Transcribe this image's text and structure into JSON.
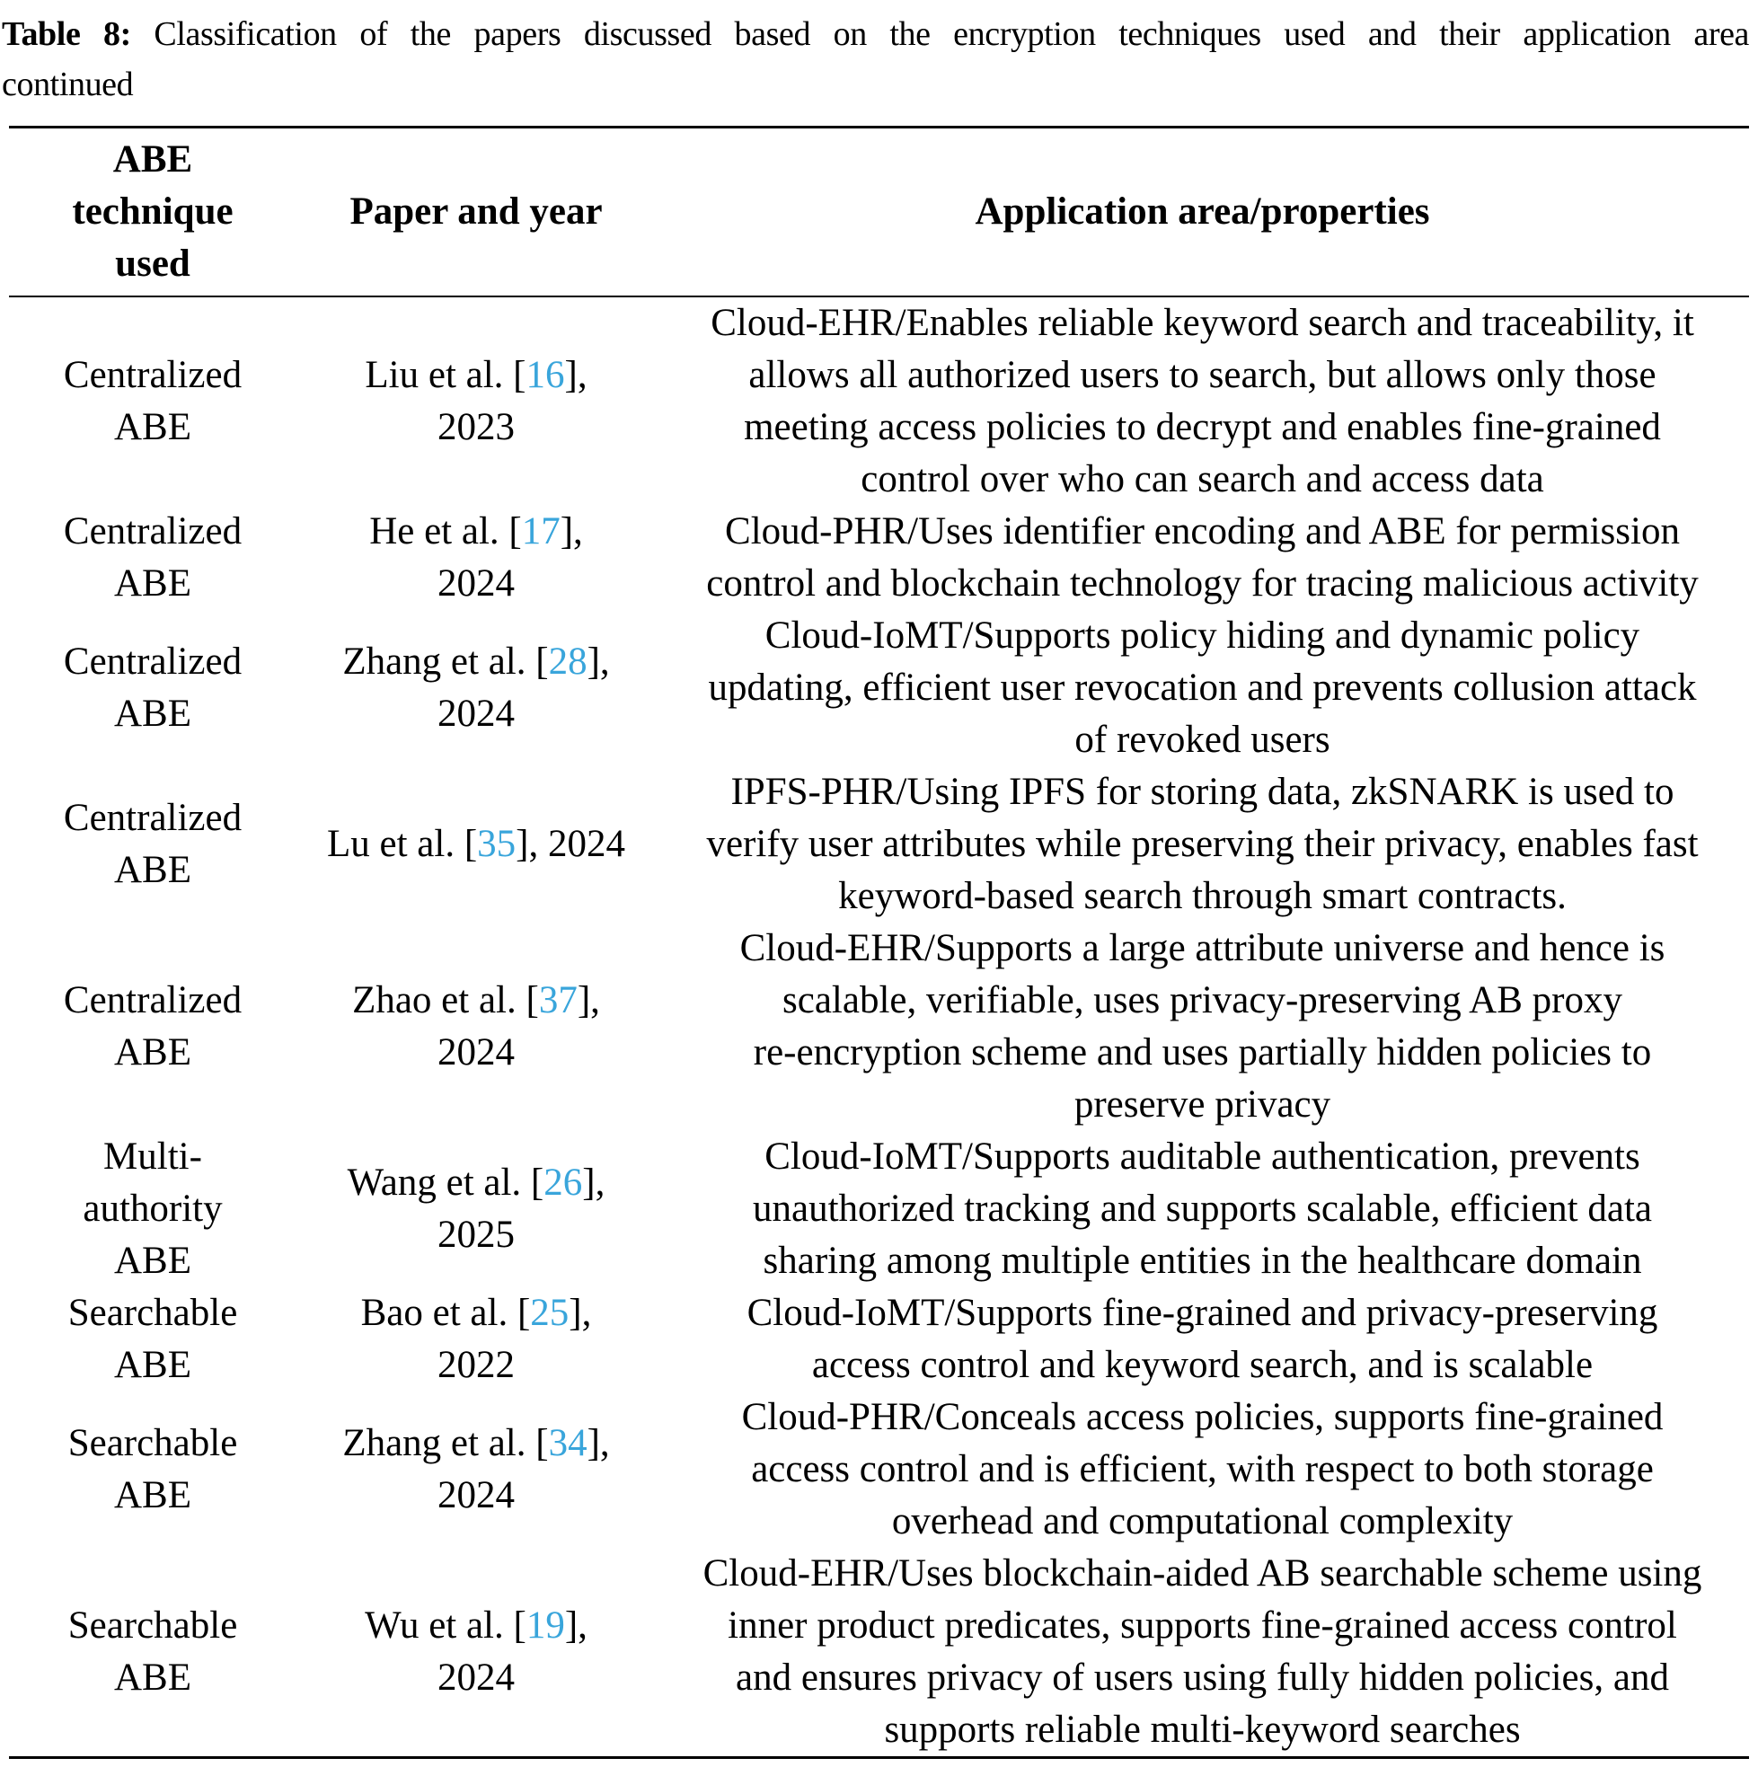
{
  "caption": {
    "label": "Table 8:",
    "line1": "Classification of the papers discussed based on the encryption techniques used and their application area",
    "line2": "continued"
  },
  "colors": {
    "text": "#000000",
    "background": "#FFFFFF",
    "citation_link": "#39A5DB",
    "rule": "#000000"
  },
  "table": {
    "headers": {
      "technique_lines": [
        "ABE",
        "technique",
        "used"
      ],
      "technique": "ABE technique used",
      "paper": "Paper and year",
      "application": "Application area/properties"
    },
    "rows": [
      {
        "technique_lines": [
          "Centralized",
          "ABE"
        ],
        "citation": {
          "prefix": "Liu et al. [",
          "ref": "16",
          "suffix": "],",
          "year": "2023",
          "year_on_same_line": false
        },
        "description_lines": [
          "Cloud-EHR/Enables reliable keyword search and traceability, it",
          "allows all authorized users to search, but allows only those",
          "meeting access policies to decrypt and enables fine-grained",
          "control over who can search and access data"
        ]
      },
      {
        "technique_lines": [
          "Centralized",
          "ABE"
        ],
        "citation": {
          "prefix": "He et al. [",
          "ref": "17",
          "suffix": "],",
          "year": "2024",
          "year_on_same_line": false
        },
        "description_lines": [
          "Cloud-PHR/Uses identifier encoding and ABE for permission",
          "control and blockchain technology for tracing malicious activity"
        ]
      },
      {
        "technique_lines": [
          "Centralized",
          "ABE"
        ],
        "citation": {
          "prefix": "Zhang et al. [",
          "ref": "28",
          "suffix": "],",
          "year": "2024",
          "year_on_same_line": false
        },
        "description_lines": [
          "Cloud-IoMT/Supports policy hiding and dynamic policy",
          "updating, efficient user revocation and prevents collusion attack",
          "of revoked users"
        ]
      },
      {
        "technique_lines": [
          "Centralized",
          "ABE"
        ],
        "citation": {
          "prefix": "Lu et al. [",
          "ref": "35",
          "suffix": "],",
          "year": "2024",
          "year_on_same_line": true
        },
        "description_lines": [
          "IPFS-PHR/Using IPFS for storing data, zkSNARK is used to",
          "verify user attributes while preserving their privacy, enables fast",
          "keyword-based search through smart contracts."
        ]
      },
      {
        "technique_lines": [
          "Centralized",
          "ABE"
        ],
        "citation": {
          "prefix": "Zhao et al. [",
          "ref": "37",
          "suffix": "],",
          "year": "2024",
          "year_on_same_line": false
        },
        "description_lines": [
          "Cloud-EHR/Supports a large attribute universe and hence is",
          "scalable, verifiable, uses privacy-preserving AB proxy",
          "re-encryption scheme and uses partially hidden policies to",
          "preserve privacy"
        ]
      },
      {
        "technique_lines": [
          "Multi-",
          "authority",
          "ABE"
        ],
        "citation": {
          "prefix": "Wang et al. [",
          "ref": "26",
          "suffix": "],",
          "year": "2025",
          "year_on_same_line": false
        },
        "description_lines": [
          "Cloud-IoMT/Supports auditable authentication, prevents",
          "unauthorized tracking and supports scalable, efficient data",
          "sharing among multiple entities in the healthcare domain"
        ]
      },
      {
        "technique_lines": [
          "Searchable",
          "ABE"
        ],
        "citation": {
          "prefix": "Bao et al. [",
          "ref": "25",
          "suffix": "],",
          "year": "2022",
          "year_on_same_line": false
        },
        "description_lines": [
          "Cloud-IoMT/Supports fine-grained and privacy-preserving",
          "access control and keyword search, and is scalable"
        ]
      },
      {
        "technique_lines": [
          "Searchable",
          "ABE"
        ],
        "citation": {
          "prefix": "Zhang et al. [",
          "ref": "34",
          "suffix": "],",
          "year": "2024",
          "year_on_same_line": false
        },
        "description_lines": [
          "Cloud-PHR/Conceals access policies, supports fine-grained",
          "access control and is efficient, with respect to both storage",
          "overhead and computational complexity"
        ]
      },
      {
        "technique_lines": [
          "Searchable",
          "ABE"
        ],
        "citation": {
          "prefix": "Wu et al. [",
          "ref": "19",
          "suffix": "],",
          "year": "2024",
          "year_on_same_line": false
        },
        "description_lines": [
          "Cloud-EHR/Uses blockchain-aided AB searchable scheme using",
          "inner product predicates, supports fine-grained access control",
          "and ensures privacy of users using fully hidden policies, and",
          "supports reliable multi-keyword searches"
        ]
      }
    ]
  }
}
